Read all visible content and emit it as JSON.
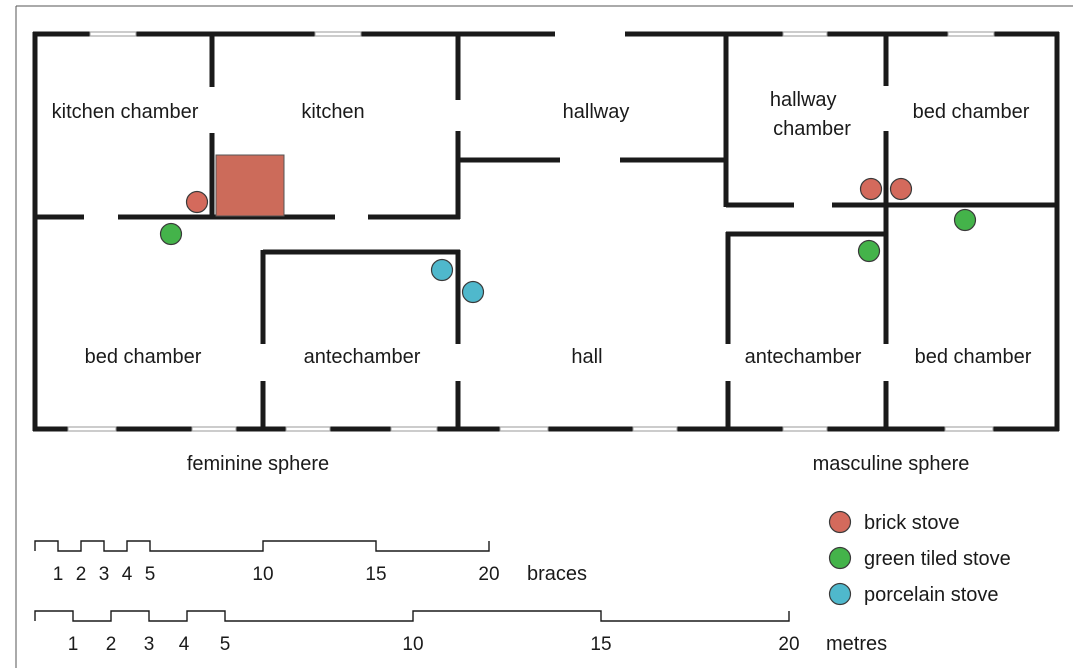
{
  "rooms": {
    "kitchen_chamber": "kitchen chamber",
    "kitchen": "kitchen",
    "hallway": "hallway",
    "hallway_chamber": "hallway\nchamber",
    "bed_chamber_ne": "bed chamber",
    "bed_chamber_sw": "bed chamber",
    "antechamber_w": "antechamber",
    "hall": "hall",
    "antechamber_e": "antechamber",
    "bed_chamber_se": "bed chamber"
  },
  "spheres": {
    "feminine": "feminine sphere",
    "masculine": "masculine sphere"
  },
  "legend": [
    {
      "label": "brick stove",
      "color": "#d46a5c"
    },
    {
      "label": "green tiled stove",
      "color": "#44b34a"
    },
    {
      "label": "porcelain stove",
      "color": "#4fb8cc"
    }
  ],
  "stoves": {
    "brick": [
      "kitchen",
      "hallway chamber",
      "bed chamber"
    ],
    "green_tiled": [
      "bed chamber",
      "antechamber",
      "bed chamber"
    ],
    "porcelain": [
      "antechamber",
      "hall"
    ]
  },
  "hearth_color": "#cc6b5a",
  "scales": {
    "braces": {
      "unit": "braces",
      "ticks": [
        "1",
        "2",
        "3",
        "4",
        "5",
        "10",
        "15",
        "20"
      ]
    },
    "metres": {
      "unit": "metres",
      "ticks": [
        "1",
        "2",
        "3",
        "4",
        "5",
        "10",
        "15",
        "20"
      ]
    }
  }
}
